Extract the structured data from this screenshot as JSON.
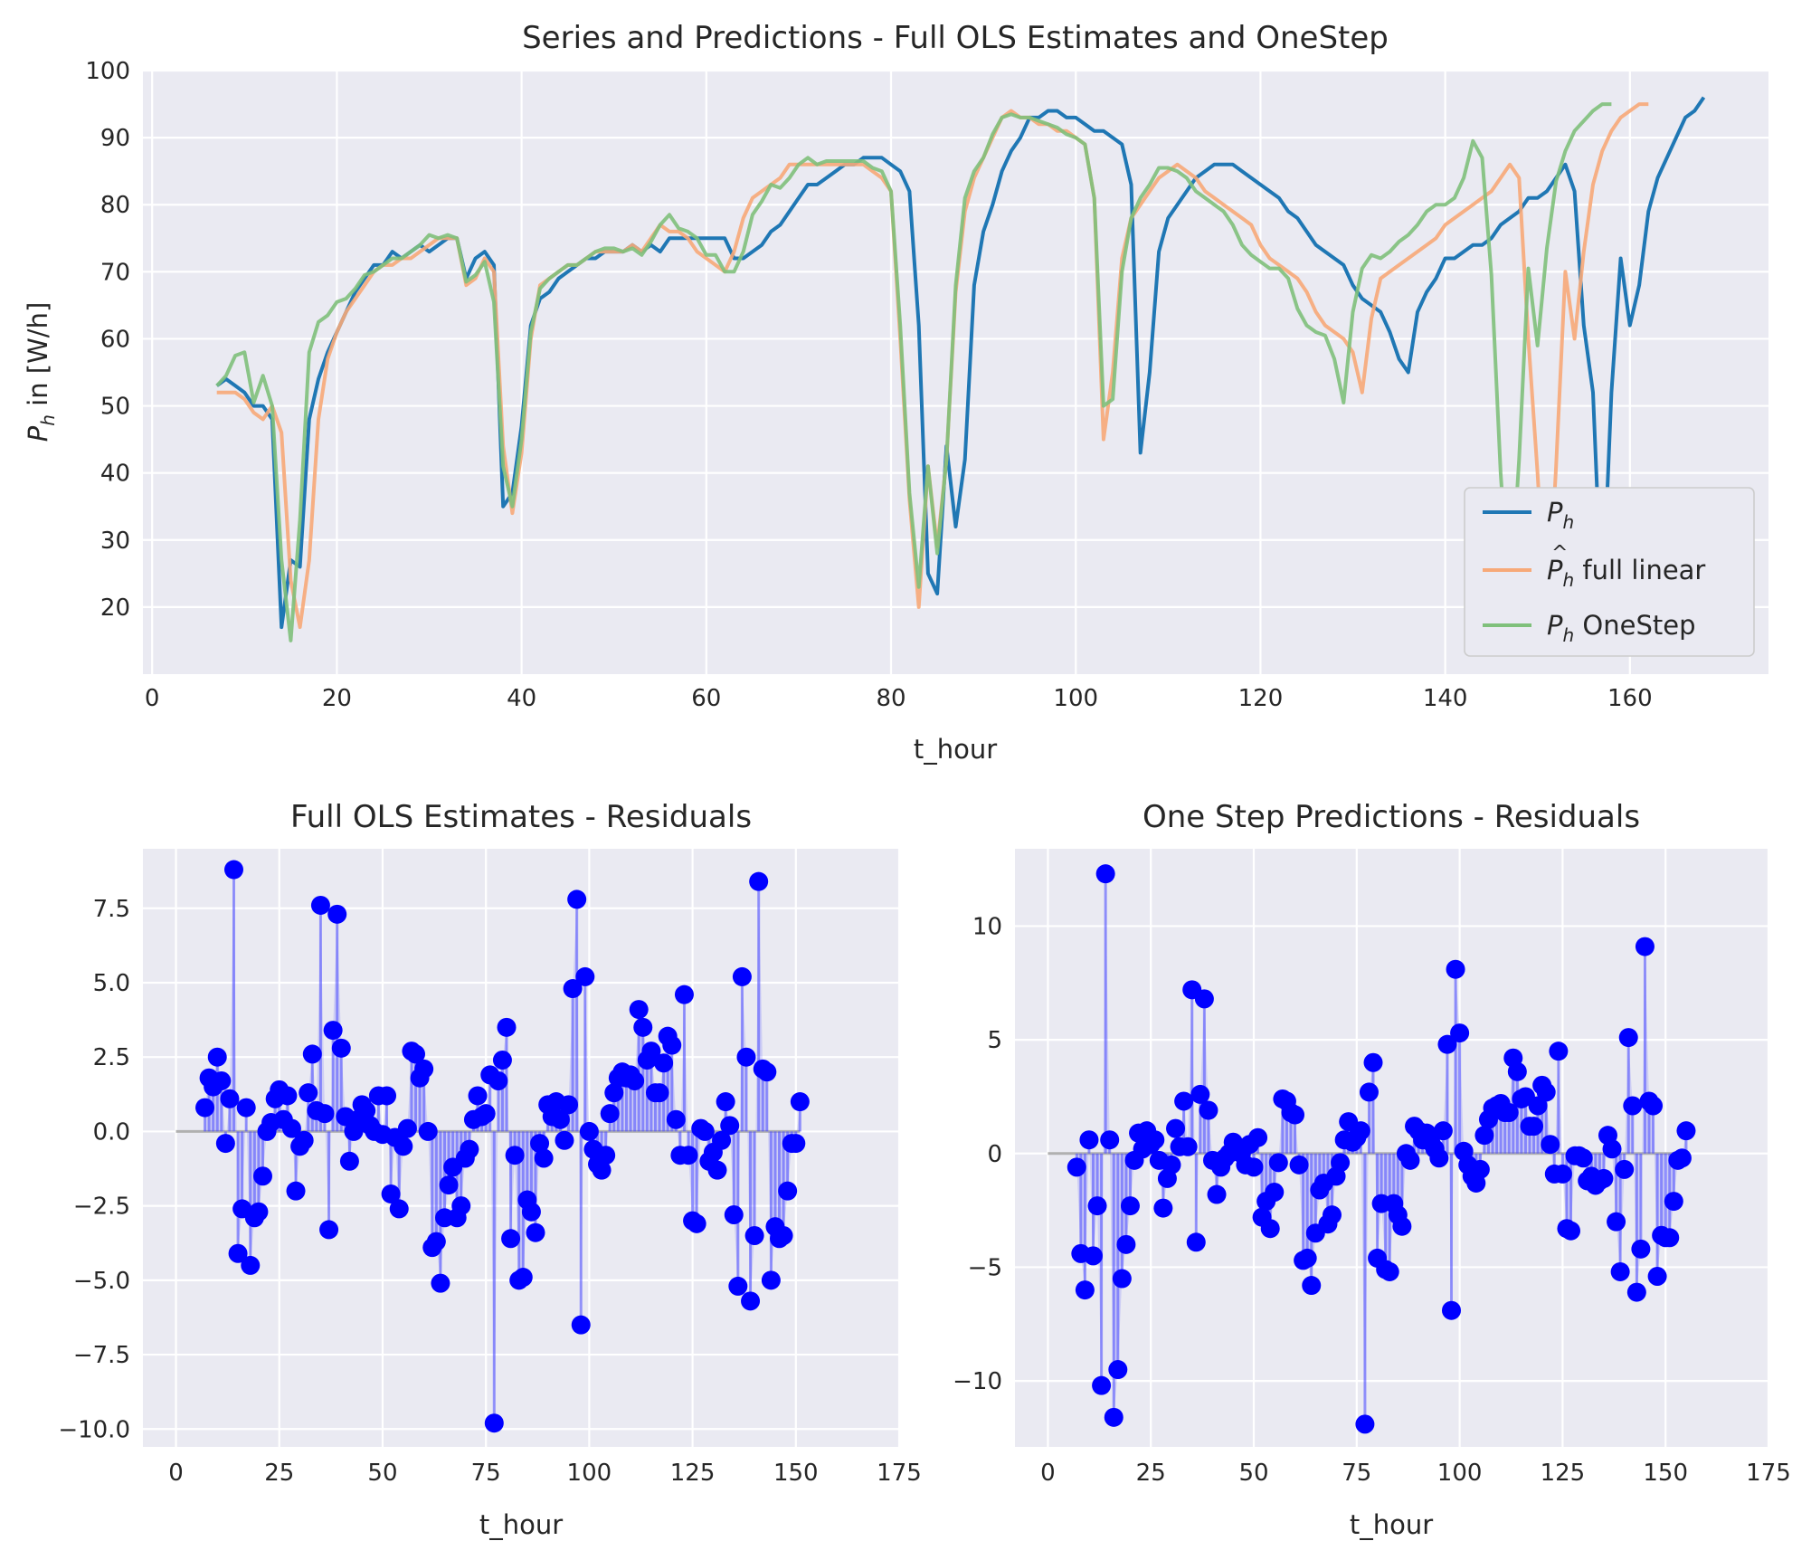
{
  "chart_data": [
    {
      "type": "line",
      "title": "Series and Predictions - Full OLS Estimates and OneStep",
      "xlabel": "t_hour",
      "ylabel": "P_h in [W/h]",
      "ylabel_parts": {
        "symbol": "P",
        "sub": "h",
        "rest": " in [W/h]"
      },
      "xlim": [
        -1,
        175
      ],
      "ylim": [
        10,
        100
      ],
      "xticks": [
        0,
        20,
        40,
        60,
        80,
        100,
        120,
        140,
        160
      ],
      "yticks": [
        20,
        30,
        40,
        50,
        60,
        70,
        80,
        90,
        100
      ],
      "legend_position": "lower right",
      "legend": [
        {
          "symbol": "P",
          "sub": "h",
          "text": "",
          "color": "#1f77b4",
          "hat": false
        },
        {
          "symbol": "P",
          "sub": "h",
          "text": " full linear",
          "color": "#f7a978",
          "hat": true
        },
        {
          "symbol": "P",
          "sub": "h",
          "text": " OneStep",
          "color": "#7fc07b",
          "hat": false
        }
      ],
      "x_start": 7,
      "series": [
        {
          "name": "P_h",
          "color": "#1f77b4",
          "opacity": 1,
          "width": 4,
          "values": [
            53,
            54,
            53,
            52,
            50,
            50,
            48,
            17,
            27,
            26,
            48,
            54,
            58,
            61,
            64,
            67,
            69,
            71,
            71,
            73,
            72,
            73,
            74,
            73,
            74,
            75,
            75,
            69,
            72,
            73,
            71,
            35,
            37,
            47,
            62,
            66,
            67,
            69,
            70,
            71,
            72,
            72,
            73,
            73,
            73,
            74,
            73,
            74,
            73,
            75,
            75,
            75,
            75,
            75,
            75,
            75,
            72,
            72,
            73,
            74,
            76,
            77,
            79,
            81,
            83,
            83,
            84,
            85,
            86,
            86,
            87,
            87,
            87,
            86,
            85,
            82,
            62,
            25,
            22,
            44,
            32,
            42,
            68,
            76,
            80,
            85,
            88,
            90,
            93,
            93,
            94,
            94,
            93,
            93,
            92,
            91,
            91,
            90,
            89,
            83,
            43,
            55,
            73,
            78,
            80,
            82,
            84,
            85,
            86,
            86,
            86,
            85,
            84,
            83,
            82,
            81,
            79,
            78,
            76,
            74,
            73,
            72,
            71,
            68,
            66,
            65,
            64,
            61,
            57,
            55,
            64,
            67,
            69,
            72,
            72,
            73,
            74,
            74,
            75,
            77,
            78,
            79,
            81,
            81,
            82,
            84,
            86,
            82,
            62,
            52,
            19,
            52,
            72,
            62,
            68,
            79,
            84,
            87,
            90,
            93,
            94,
            96
          ]
        },
        {
          "name": "P_h_hat full linear",
          "color": "#f7a978",
          "opacity": 1,
          "width": 4,
          "values": [
            52,
            52,
            52,
            51,
            49,
            48,
            50,
            46,
            24,
            17,
            27,
            48,
            57,
            61,
            64,
            66,
            68,
            70,
            71,
            71,
            72,
            72,
            73,
            74,
            75,
            75,
            75,
            68,
            69,
            72,
            70,
            44,
            34,
            43,
            60,
            68,
            69,
            70,
            71,
            71,
            72,
            73,
            73,
            73,
            73,
            74,
            73,
            75,
            77,
            76,
            76,
            75,
            73,
            72,
            71,
            70,
            73,
            78,
            81,
            82,
            83,
            84,
            86,
            86,
            86,
            86,
            86,
            86,
            86,
            86,
            86,
            85,
            84,
            82,
            60,
            36,
            20,
            41,
            29,
            42,
            67,
            79,
            84,
            87,
            90,
            93,
            94,
            93,
            93,
            92,
            92,
            91,
            91,
            90,
            89,
            81,
            45,
            55,
            72,
            78,
            80,
            82,
            84,
            85,
            86,
            85,
            84,
            82,
            81,
            80,
            79,
            78,
            77,
            74,
            72,
            71,
            70,
            69,
            67,
            64,
            62,
            61,
            60,
            58,
            52,
            63,
            69,
            70,
            71,
            72,
            73,
            74,
            75,
            77,
            78,
            79,
            80,
            81,
            82,
            84,
            86,
            84,
            60,
            40,
            16,
            41,
            70,
            60,
            73,
            83,
            88,
            91,
            93,
            94,
            95,
            95
          ]
        },
        {
          "name": "P_h OneStep",
          "color": "#7fc07b",
          "opacity": 1,
          "width": 4,
          "values": [
            53,
            54.5,
            57.5,
            58,
            50.5,
            54.5,
            50,
            27,
            15,
            33,
            58,
            62.5,
            63.5,
            65.5,
            66,
            67.5,
            69.5,
            70,
            71,
            72,
            72,
            73,
            74,
            75.5,
            75,
            75.5,
            75,
            68.5,
            69.5,
            71.5,
            65.5,
            41,
            35,
            45,
            61,
            67.5,
            69,
            70,
            71,
            71,
            72,
            73,
            73.5,
            73.5,
            73,
            73.5,
            72.5,
            74.5,
            77,
            78.5,
            76.5,
            76,
            75,
            72.5,
            72.5,
            70,
            70,
            73,
            78.5,
            80.5,
            83,
            82.5,
            84,
            86,
            87,
            86,
            86.5,
            86.5,
            86.5,
            86.5,
            86.5,
            85.5,
            85,
            82,
            62,
            37,
            23,
            41,
            28,
            42,
            68,
            81,
            85,
            87,
            90.5,
            93,
            93.5,
            93,
            93,
            92.5,
            92,
            91.5,
            90.5,
            90,
            89,
            81,
            50,
            51,
            70,
            78,
            81,
            83,
            85.5,
            85.5,
            85,
            84,
            82,
            81,
            80,
            79,
            77,
            74,
            72.5,
            71.5,
            70.5,
            70.5,
            69,
            64.5,
            62,
            61,
            60.5,
            57,
            50.5,
            64,
            70.5,
            72.5,
            72,
            73,
            74.5,
            75.5,
            77,
            79,
            80,
            80,
            81,
            84,
            89.5,
            87,
            69.5,
            40,
            20,
            42,
            70.5,
            59,
            73.5,
            83.5,
            88,
            91,
            92.5,
            94,
            95,
            95
          ]
        }
      ]
    },
    {
      "type": "stem",
      "title": "Full OLS Estimates - Residuals",
      "xlabel": "t_hour",
      "ylabel": "",
      "xlim": [
        -8,
        175
      ],
      "ylim": [
        -10.6,
        9.5
      ],
      "xticks": [
        0,
        25,
        50,
        75,
        100,
        125,
        150,
        175
      ],
      "yticks": [
        -10.0,
        -7.5,
        -5.0,
        -2.5,
        0.0,
        2.5,
        5.0,
        7.5
      ],
      "ytick_labels": [
        "−10.0",
        "−7.5",
        "−5.0",
        "−2.5",
        "0.0",
        "2.5",
        "5.0",
        "7.5"
      ],
      "x_start": 7,
      "marker_color": "#0000ff",
      "baseline_color": "#b0b0b0",
      "values": [
        0.8,
        1.8,
        1.5,
        2.5,
        1.7,
        -0.4,
        1.1,
        8.8,
        -4.1,
        -2.6,
        0.8,
        -4.5,
        -2.9,
        -2.7,
        -1.5,
        0.0,
        0.3,
        1.1,
        1.4,
        0.4,
        1.2,
        0.1,
        -2.0,
        -0.5,
        -0.3,
        1.3,
        2.6,
        0.7,
        7.6,
        0.6,
        -3.3,
        3.4,
        7.3,
        2.8,
        0.5,
        -1.0,
        0.0,
        0.4,
        0.9,
        0.7,
        0.2,
        0.0,
        1.2,
        -0.1,
        1.2,
        -2.1,
        -0.2,
        -2.6,
        -0.5,
        0.1,
        2.7,
        2.6,
        1.8,
        2.1,
        0.0,
        -3.9,
        -3.7,
        -5.1,
        -2.9,
        -1.8,
        -1.2,
        -2.9,
        -2.5,
        -0.9,
        -0.6,
        0.4,
        1.2,
        0.5,
        0.6,
        1.9,
        -9.8,
        1.7,
        2.4,
        3.5,
        -3.6,
        -0.8,
        -5.0,
        -4.9,
        -2.3,
        -2.7,
        -3.4,
        -0.4,
        -0.9,
        0.9,
        0.5,
        1.0,
        0.4,
        -0.3,
        0.9,
        4.8,
        7.8,
        -6.5,
        5.2,
        0.0,
        -0.6,
        -1.1,
        -1.3,
        -0.8,
        0.6,
        1.3,
        1.8,
        2.0,
        1.8,
        1.9,
        1.7,
        4.1,
        3.5,
        2.4,
        2.7,
        1.3,
        1.3,
        2.3,
        3.2,
        2.9,
        0.4,
        -0.8,
        4.6,
        -0.8,
        -3.0,
        -3.1,
        0.1,
        0.0,
        -1.0,
        -0.7,
        -1.3,
        -0.3,
        1.0,
        0.2,
        -2.8,
        -5.2,
        5.2,
        2.5,
        -5.7,
        -3.5,
        8.4,
        2.1,
        2.0,
        -5.0,
        -3.2,
        -3.6,
        -3.5,
        -2.0,
        -0.4,
        -0.4,
        1.0
      ]
    },
    {
      "type": "stem",
      "title": "One Step Predictions - Residuals",
      "xlabel": "t_hour",
      "ylabel": "",
      "xlim": [
        -8,
        175
      ],
      "ylim": [
        -12.9,
        13.4
      ],
      "xticks": [
        0,
        25,
        50,
        75,
        100,
        125,
        150,
        175
      ],
      "yticks": [
        -10,
        -5,
        0,
        5,
        10
      ],
      "ytick_labels": [
        "−10",
        "−5",
        "0",
        "5",
        "10"
      ],
      "x_start": 7,
      "marker_color": "#0000ff",
      "baseline_color": "#b0b0b0",
      "values": [
        -0.6,
        -4.4,
        -6.0,
        0.6,
        -4.5,
        -2.3,
        -10.2,
        12.3,
        0.6,
        -11.6,
        -9.5,
        -5.5,
        -4.0,
        -2.3,
        -0.3,
        0.9,
        0.2,
        1.0,
        0.4,
        0.6,
        -0.3,
        -2.4,
        -1.1,
        -0.5,
        1.1,
        0.3,
        2.3,
        0.3,
        7.2,
        -3.9,
        2.6,
        6.8,
        1.9,
        -0.3,
        -1.8,
        -0.6,
        -0.2,
        0.0,
        0.5,
        0.3,
        0.0,
        -0.5,
        0.4,
        -0.6,
        0.7,
        -2.8,
        -2.1,
        -3.3,
        -1.7,
        -0.4,
        2.4,
        2.3,
        1.8,
        1.7,
        -0.5,
        -4.7,
        -4.6,
        -5.8,
        -3.5,
        -1.6,
        -1.3,
        -3.1,
        -2.7,
        -1.0,
        -0.4,
        0.6,
        1.4,
        0.5,
        0.7,
        1.0,
        -11.9,
        2.7,
        4.0,
        -4.6,
        -2.2,
        -5.1,
        -5.2,
        -2.2,
        -2.7,
        -3.2,
        0.0,
        -0.3,
        1.2,
        1.0,
        0.6,
        0.9,
        0.5,
        0.2,
        -0.2,
        1.0,
        4.8,
        -6.9,
        8.1,
        5.3,
        0.1,
        -0.5,
        -1.0,
        -1.3,
        -0.7,
        0.8,
        1.5,
        2.0,
        2.1,
        2.2,
        1.8,
        1.8,
        4.2,
        3.6,
        2.4,
        2.5,
        1.2,
        1.2,
        2.1,
        3.0,
        2.7,
        0.4,
        -0.9,
        4.5,
        -0.9,
        -3.3,
        -3.4,
        -0.1,
        -0.1,
        -0.2,
        -1.2,
        -1.0,
        -1.4,
        -1.2,
        -1.1,
        0.8,
        0.2,
        -3.0,
        -5.2,
        -0.7,
        5.1,
        2.1,
        -6.1,
        -4.2,
        9.1,
        2.3,
        2.1,
        -5.4,
        -3.6,
        -3.7,
        -3.7,
        -2.1,
        -0.3,
        -0.2,
        1.0
      ]
    }
  ]
}
